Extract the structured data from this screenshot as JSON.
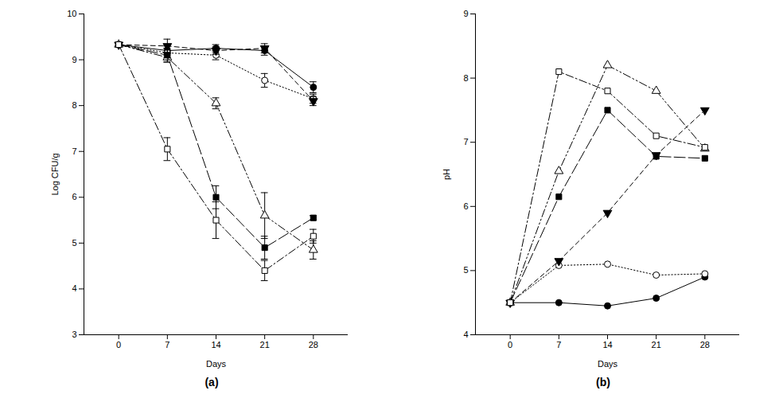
{
  "chart_data": [
    {
      "type": "line",
      "caption": "(a)",
      "x_label": "Days",
      "y_label": "Log CFU/g",
      "x": [
        0,
        7,
        14,
        21,
        28
      ],
      "xlim": [
        -5,
        33
      ],
      "xticks": [
        0,
        7,
        14,
        21,
        28
      ],
      "ylim": [
        3,
        10
      ],
      "yticks": [
        3,
        4,
        5,
        6,
        7,
        8,
        9,
        10
      ],
      "series": [
        {
          "color": "#000000",
          "marker": "circle",
          "line_style": "solid",
          "values": [
            9.33,
            9.2,
            9.25,
            9.2,
            8.4
          ],
          "errors": [
            null,
            0.1,
            0.08,
            0.1,
            0.12
          ]
        },
        {
          "color": "#000000",
          "marker": "circle-open",
          "line_style": "dotted",
          "values": [
            9.33,
            9.15,
            9.1,
            8.55,
            8.15
          ],
          "errors": [
            null,
            0.1,
            0.1,
            0.15,
            0.1
          ]
        },
        {
          "color": "#000000",
          "marker": "triangle-down",
          "line_style": "dashed",
          "values": [
            9.33,
            9.3,
            9.2,
            9.25,
            8.1
          ],
          "errors": [
            null,
            0.15,
            0.08,
            0.1,
            0.1
          ]
        },
        {
          "color": "#000000",
          "marker": "triangle-open",
          "line_style": "dashdotdot",
          "values": [
            9.33,
            9.05,
            8.05,
            5.6,
            4.85
          ],
          "errors": [
            null,
            0.1,
            0.12,
            0.5,
            0.2
          ]
        },
        {
          "color": "#000000",
          "marker": "square",
          "line_style": "longdash",
          "values": [
            9.33,
            9.1,
            6.0,
            4.9,
            5.55
          ],
          "errors": [
            null,
            0.15,
            0.25,
            0.25,
            0.05
          ]
        },
        {
          "color": "#000000",
          "marker": "square-open",
          "line_style": "dashdot",
          "values": [
            9.33,
            7.05,
            5.5,
            4.4,
            5.15
          ],
          "errors": [
            null,
            0.25,
            0.4,
            0.22,
            0.15
          ]
        }
      ]
    },
    {
      "type": "line",
      "caption": "(b)",
      "x_label": "Days",
      "y_label": "pH",
      "x": [
        0,
        7,
        14,
        21,
        28
      ],
      "xlim": [
        -5,
        33
      ],
      "xticks": [
        0,
        7,
        14,
        21,
        28
      ],
      "ylim": [
        4,
        9
      ],
      "yticks": [
        4,
        5,
        6,
        7,
        8,
        9
      ],
      "series": [
        {
          "color": "#000000",
          "marker": "circle",
          "line_style": "solid",
          "values": [
            4.5,
            4.5,
            4.45,
            4.57,
            4.9
          ]
        },
        {
          "color": "#000000",
          "marker": "circle-open",
          "line_style": "dotted",
          "values": [
            4.5,
            5.08,
            5.1,
            4.93,
            4.95
          ]
        },
        {
          "color": "#000000",
          "marker": "triangle-down",
          "line_style": "dashed",
          "values": [
            4.5,
            5.15,
            5.9,
            6.8,
            7.5
          ]
        },
        {
          "color": "#000000",
          "marker": "triangle-open",
          "line_style": "dashdotdot",
          "values": [
            4.5,
            6.55,
            8.2,
            7.8,
            6.9
          ]
        },
        {
          "color": "#000000",
          "marker": "square",
          "line_style": "longdash",
          "values": [
            4.5,
            6.15,
            7.5,
            6.78,
            6.75
          ]
        },
        {
          "color": "#000000",
          "marker": "square-open",
          "line_style": "dashdot",
          "values": [
            4.5,
            8.1,
            7.8,
            7.1,
            6.92
          ]
        }
      ]
    }
  ]
}
